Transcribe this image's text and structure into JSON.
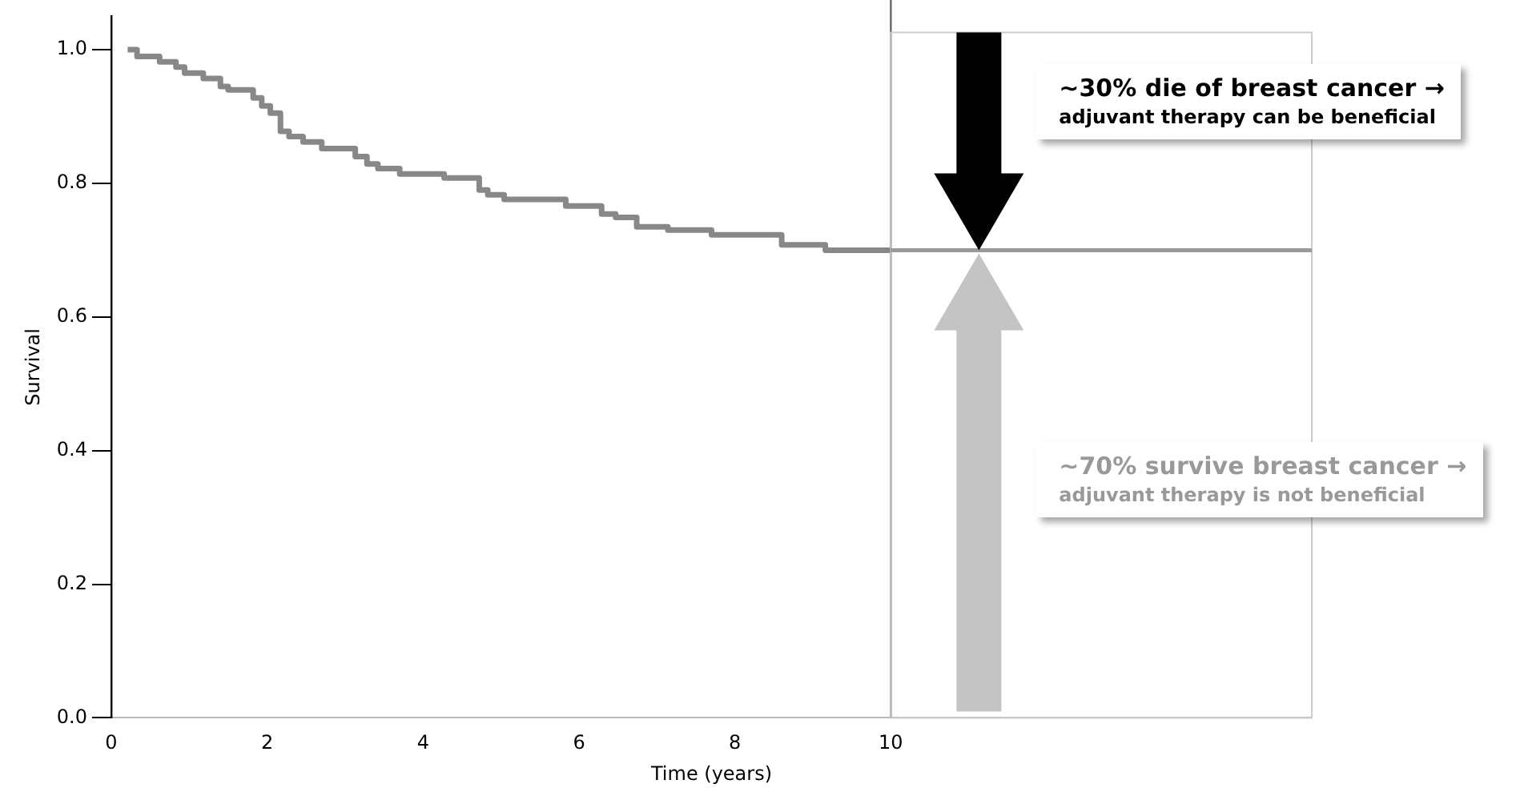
{
  "chart_data": {
    "type": "step",
    "xlabel": "Time (years)",
    "ylabel": "Survival",
    "xlim": [
      0,
      15.4
    ],
    "xticks": [
      0,
      2,
      4,
      6,
      8,
      10
    ],
    "ylim": [
      0,
      1.05
    ],
    "yticks": [
      {
        "value": 0,
        "label": "0.0"
      },
      0.2,
      0.4,
      0.6,
      0.8,
      {
        "value": 1,
        "label": "1.0"
      }
    ],
    "grid": false,
    "legend": false,
    "marker": "none",
    "line_style": "solid",
    "series": [
      {
        "color": "#888888",
        "x": [
          0.21,
          0.33,
          0.62,
          0.83,
          0.94,
          1.18,
          1.4,
          1.5,
          1.82,
          1.93,
          2.04,
          2.17,
          2.28,
          2.46,
          2.7,
          3.13,
          3.28,
          3.42,
          3.7,
          4.27,
          4.72,
          4.83,
          5.04,
          5.83,
          6.29,
          6.47,
          6.74,
          7.14,
          7.7,
          8.6,
          9.16,
          10
        ],
        "values": [
          1,
          0.99,
          0.982,
          0.974,
          0.965,
          0.957,
          0.945,
          0.94,
          0.928,
          0.916,
          0.905,
          0.878,
          0.87,
          0.862,
          0.852,
          0.84,
          0.829,
          0.822,
          0.814,
          0.808,
          0.79,
          0.783,
          0.776,
          0.766,
          0.754,
          0.749,
          0.735,
          0.73,
          0.723,
          0.708,
          0.7,
          0.7
        ]
      }
    ],
    "ref_lines": [
      {
        "axis": "x",
        "value": 10,
        "color": "#666666"
      },
      {
        "axis": "y",
        "value": 0.7,
        "color": "#999999"
      }
    ],
    "annotations": [
      "~30% die of breast cancer →\nadjuvant therapy can be beneficial",
      "~70% survive breast cancer →\nadjuvant therapy is not beneficial"
    ]
  }
}
